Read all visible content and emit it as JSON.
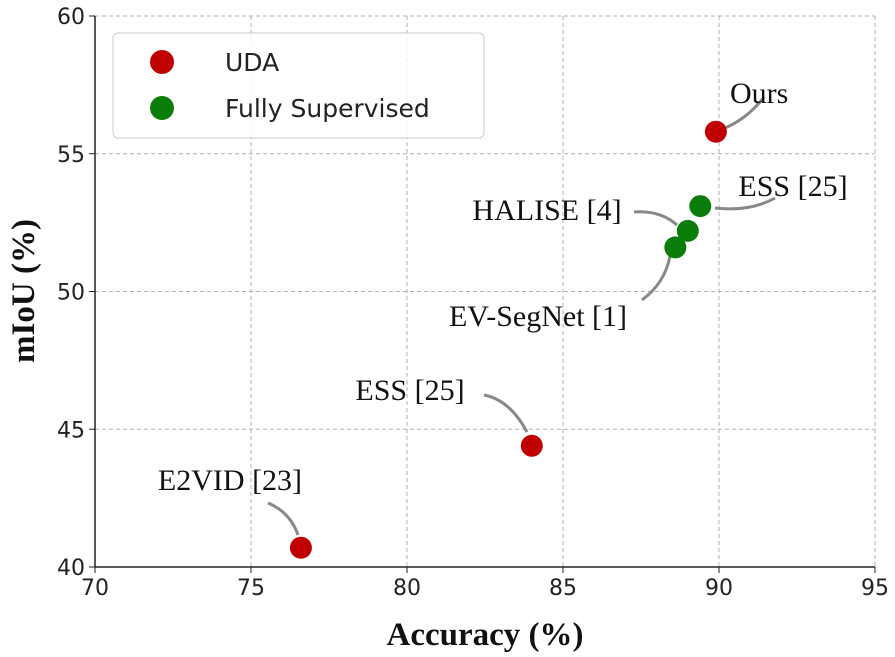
{
  "chart_data": {
    "type": "scatter",
    "x_label": "Accuracy (%)",
    "y_label": "mIoU (%)",
    "xlim": [
      70,
      95
    ],
    "xticks": [
      70,
      75,
      80,
      85,
      90,
      95
    ],
    "ylim": [
      40,
      60
    ],
    "yticks": [
      40,
      45,
      50,
      55,
      60
    ],
    "grid": true,
    "legend": "upper left",
    "series": [
      {
        "name": "UDA",
        "color": "#c00000",
        "x": [
          76.6,
          84.0,
          89.9
        ],
        "values": [
          40.7,
          44.4,
          55.8
        ],
        "labels": [
          "E2VID [23]",
          "ESS [25]",
          "Ours"
        ]
      },
      {
        "name": "Fully Supervised",
        "color": "#0a7d0a",
        "x": [
          88.6,
          89.0,
          89.4
        ],
        "values": [
          51.6,
          52.2,
          53.1
        ],
        "labels": [
          "EV-SegNet [1]",
          "HALISE [4]",
          "ESS [25]"
        ]
      }
    ]
  }
}
